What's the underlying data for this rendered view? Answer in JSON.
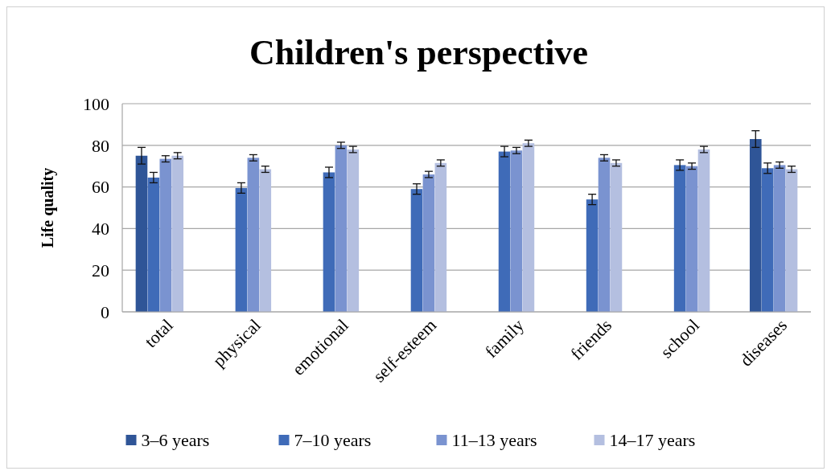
{
  "chart_data": {
    "type": "bar",
    "title": "Children's perspective",
    "ylabel": "Life quality",
    "categories": [
      "total",
      "physical",
      "emotional",
      "self-esteem",
      "family",
      "friends",
      "school",
      "diseases"
    ],
    "series": [
      {
        "name": "3–6 years",
        "color": "#2f5597",
        "values": [
          75,
          null,
          null,
          null,
          null,
          null,
          null,
          83
        ],
        "errors": [
          4,
          null,
          null,
          null,
          null,
          null,
          null,
          4
        ]
      },
      {
        "name": "7–10 years",
        "color": "#3f6bb8",
        "values": [
          64.5,
          59.5,
          67,
          59,
          77,
          54,
          70.5,
          69
        ],
        "errors": [
          2.5,
          2.5,
          2.5,
          2.5,
          2.5,
          2.5,
          2.5,
          2.5
        ]
      },
      {
        "name": "11–13 years",
        "color": "#7a93d0",
        "values": [
          73.5,
          74,
          80,
          66,
          77.5,
          74,
          70,
          70.5
        ],
        "errors": [
          1.5,
          1.5,
          1.5,
          1.5,
          1.5,
          1.5,
          1.5,
          1.5
        ]
      },
      {
        "name": "14–17 years",
        "color": "#b4bfe0",
        "values": [
          75,
          68.5,
          78,
          71.5,
          81,
          71.5,
          78,
          68.5
        ],
        "errors": [
          1.5,
          1.5,
          1.5,
          1.5,
          1.5,
          1.5,
          1.5,
          1.5
        ]
      }
    ],
    "ylim": [
      0,
      100
    ],
    "yticks": [
      0,
      20,
      40,
      60,
      80,
      100
    ],
    "grid": "y",
    "legend": "bottom"
  }
}
